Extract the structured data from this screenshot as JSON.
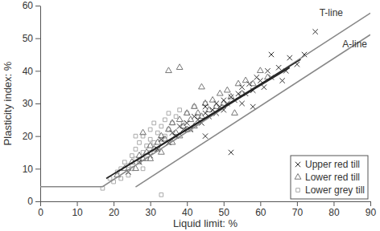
{
  "chart_data": {
    "type": "scatter",
    "x_label": "Liquid limit: %",
    "y_label": "Plasticity index: %",
    "xlim": [
      0,
      90
    ],
    "ylim": [
      0,
      60
    ],
    "xticks": [
      0,
      10,
      20,
      30,
      40,
      50,
      60,
      70,
      80,
      90
    ],
    "yticks": [
      0,
      10,
      20,
      30,
      40,
      50,
      60
    ],
    "grid": false,
    "legend": "lower right",
    "series": [
      {
        "name": "Upper red till",
        "color": "#333333",
        "marker": "x",
        "x": [
          24,
          27,
          30,
          32,
          33,
          35,
          36,
          37,
          38,
          39,
          40,
          41,
          42,
          43,
          44,
          45,
          45,
          46,
          47,
          48,
          48,
          49,
          50,
          50,
          51,
          52,
          53,
          54,
          55,
          55,
          56,
          57,
          58,
          59,
          60,
          61,
          62,
          63,
          65,
          66,
          67,
          68,
          70,
          72,
          75,
          63,
          52,
          45,
          58
        ],
        "values": [
          9,
          12,
          14,
          16,
          19,
          18,
          21,
          20,
          23,
          22,
          24,
          22,
          26,
          25,
          24,
          27,
          29,
          26,
          28,
          27,
          30,
          29,
          31,
          28,
          30,
          32,
          31,
          33,
          30,
          35,
          33,
          36,
          34,
          38,
          37,
          35,
          40,
          38,
          41,
          37,
          40,
          44,
          42,
          45,
          52,
          45,
          15,
          20,
          29
        ]
      },
      {
        "name": "Lower red till",
        "color": "#777777",
        "marker": "triangle",
        "x": [
          21,
          23,
          25,
          26,
          27,
          28,
          29,
          30,
          30,
          31,
          32,
          33,
          33,
          34,
          35,
          36,
          36,
          37,
          38,
          38,
          39,
          40,
          40,
          41,
          42,
          42,
          43,
          44,
          45,
          46,
          47,
          48,
          49,
          50,
          51,
          52,
          54,
          55,
          56,
          58,
          60,
          62,
          35,
          38,
          53,
          28,
          44
        ],
        "values": [
          8,
          10,
          12,
          10,
          14,
          13,
          15,
          13,
          17,
          16,
          18,
          15,
          20,
          19,
          22,
          18,
          24,
          21,
          20,
          25,
          23,
          22,
          27,
          25,
          23,
          29,
          27,
          26,
          30,
          28,
          31,
          29,
          33,
          30,
          34,
          32,
          36,
          33,
          37,
          36,
          40,
          38,
          40,
          41,
          27,
          21,
          35
        ]
      },
      {
        "name": "Lower grey till",
        "color": "#aaaaaa",
        "marker": "square",
        "x": [
          17,
          19,
          20,
          21,
          22,
          22,
          23,
          24,
          24,
          25,
          25,
          26,
          26,
          27,
          27,
          28,
          28,
          29,
          29,
          30,
          30,
          30,
          31,
          31,
          32,
          32,
          33,
          33,
          34,
          34,
          35,
          35,
          36,
          37,
          37,
          38,
          39,
          40,
          41,
          42,
          43,
          45,
          33,
          28,
          26
        ],
        "values": [
          4,
          7,
          6,
          9,
          10,
          7,
          12,
          11,
          8,
          14,
          10,
          13,
          16,
          12,
          18,
          15,
          20,
          17,
          13,
          19,
          22,
          15,
          18,
          24,
          21,
          16,
          23,
          19,
          25,
          20,
          22,
          27,
          24,
          20,
          26,
          28,
          24,
          27,
          22,
          29,
          26,
          30,
          2,
          10,
          20
        ]
      }
    ],
    "lines": [
      {
        "label": "T-line",
        "color": "#888888",
        "x": [
          0,
          17,
          90
        ],
        "values": [
          4.5,
          4.5,
          57.7
        ]
      },
      {
        "label": "A-line",
        "color": "#888888",
        "x": [
          26,
          90
        ],
        "values": [
          4.4,
          51.1
        ]
      },
      {
        "color": "#222222",
        "x": [
          18,
          71
        ],
        "values": [
          7,
          43.5
        ]
      },
      {
        "color": "#222222",
        "x": [
          21,
          68
        ],
        "values": [
          9,
          41
        ]
      }
    ]
  }
}
